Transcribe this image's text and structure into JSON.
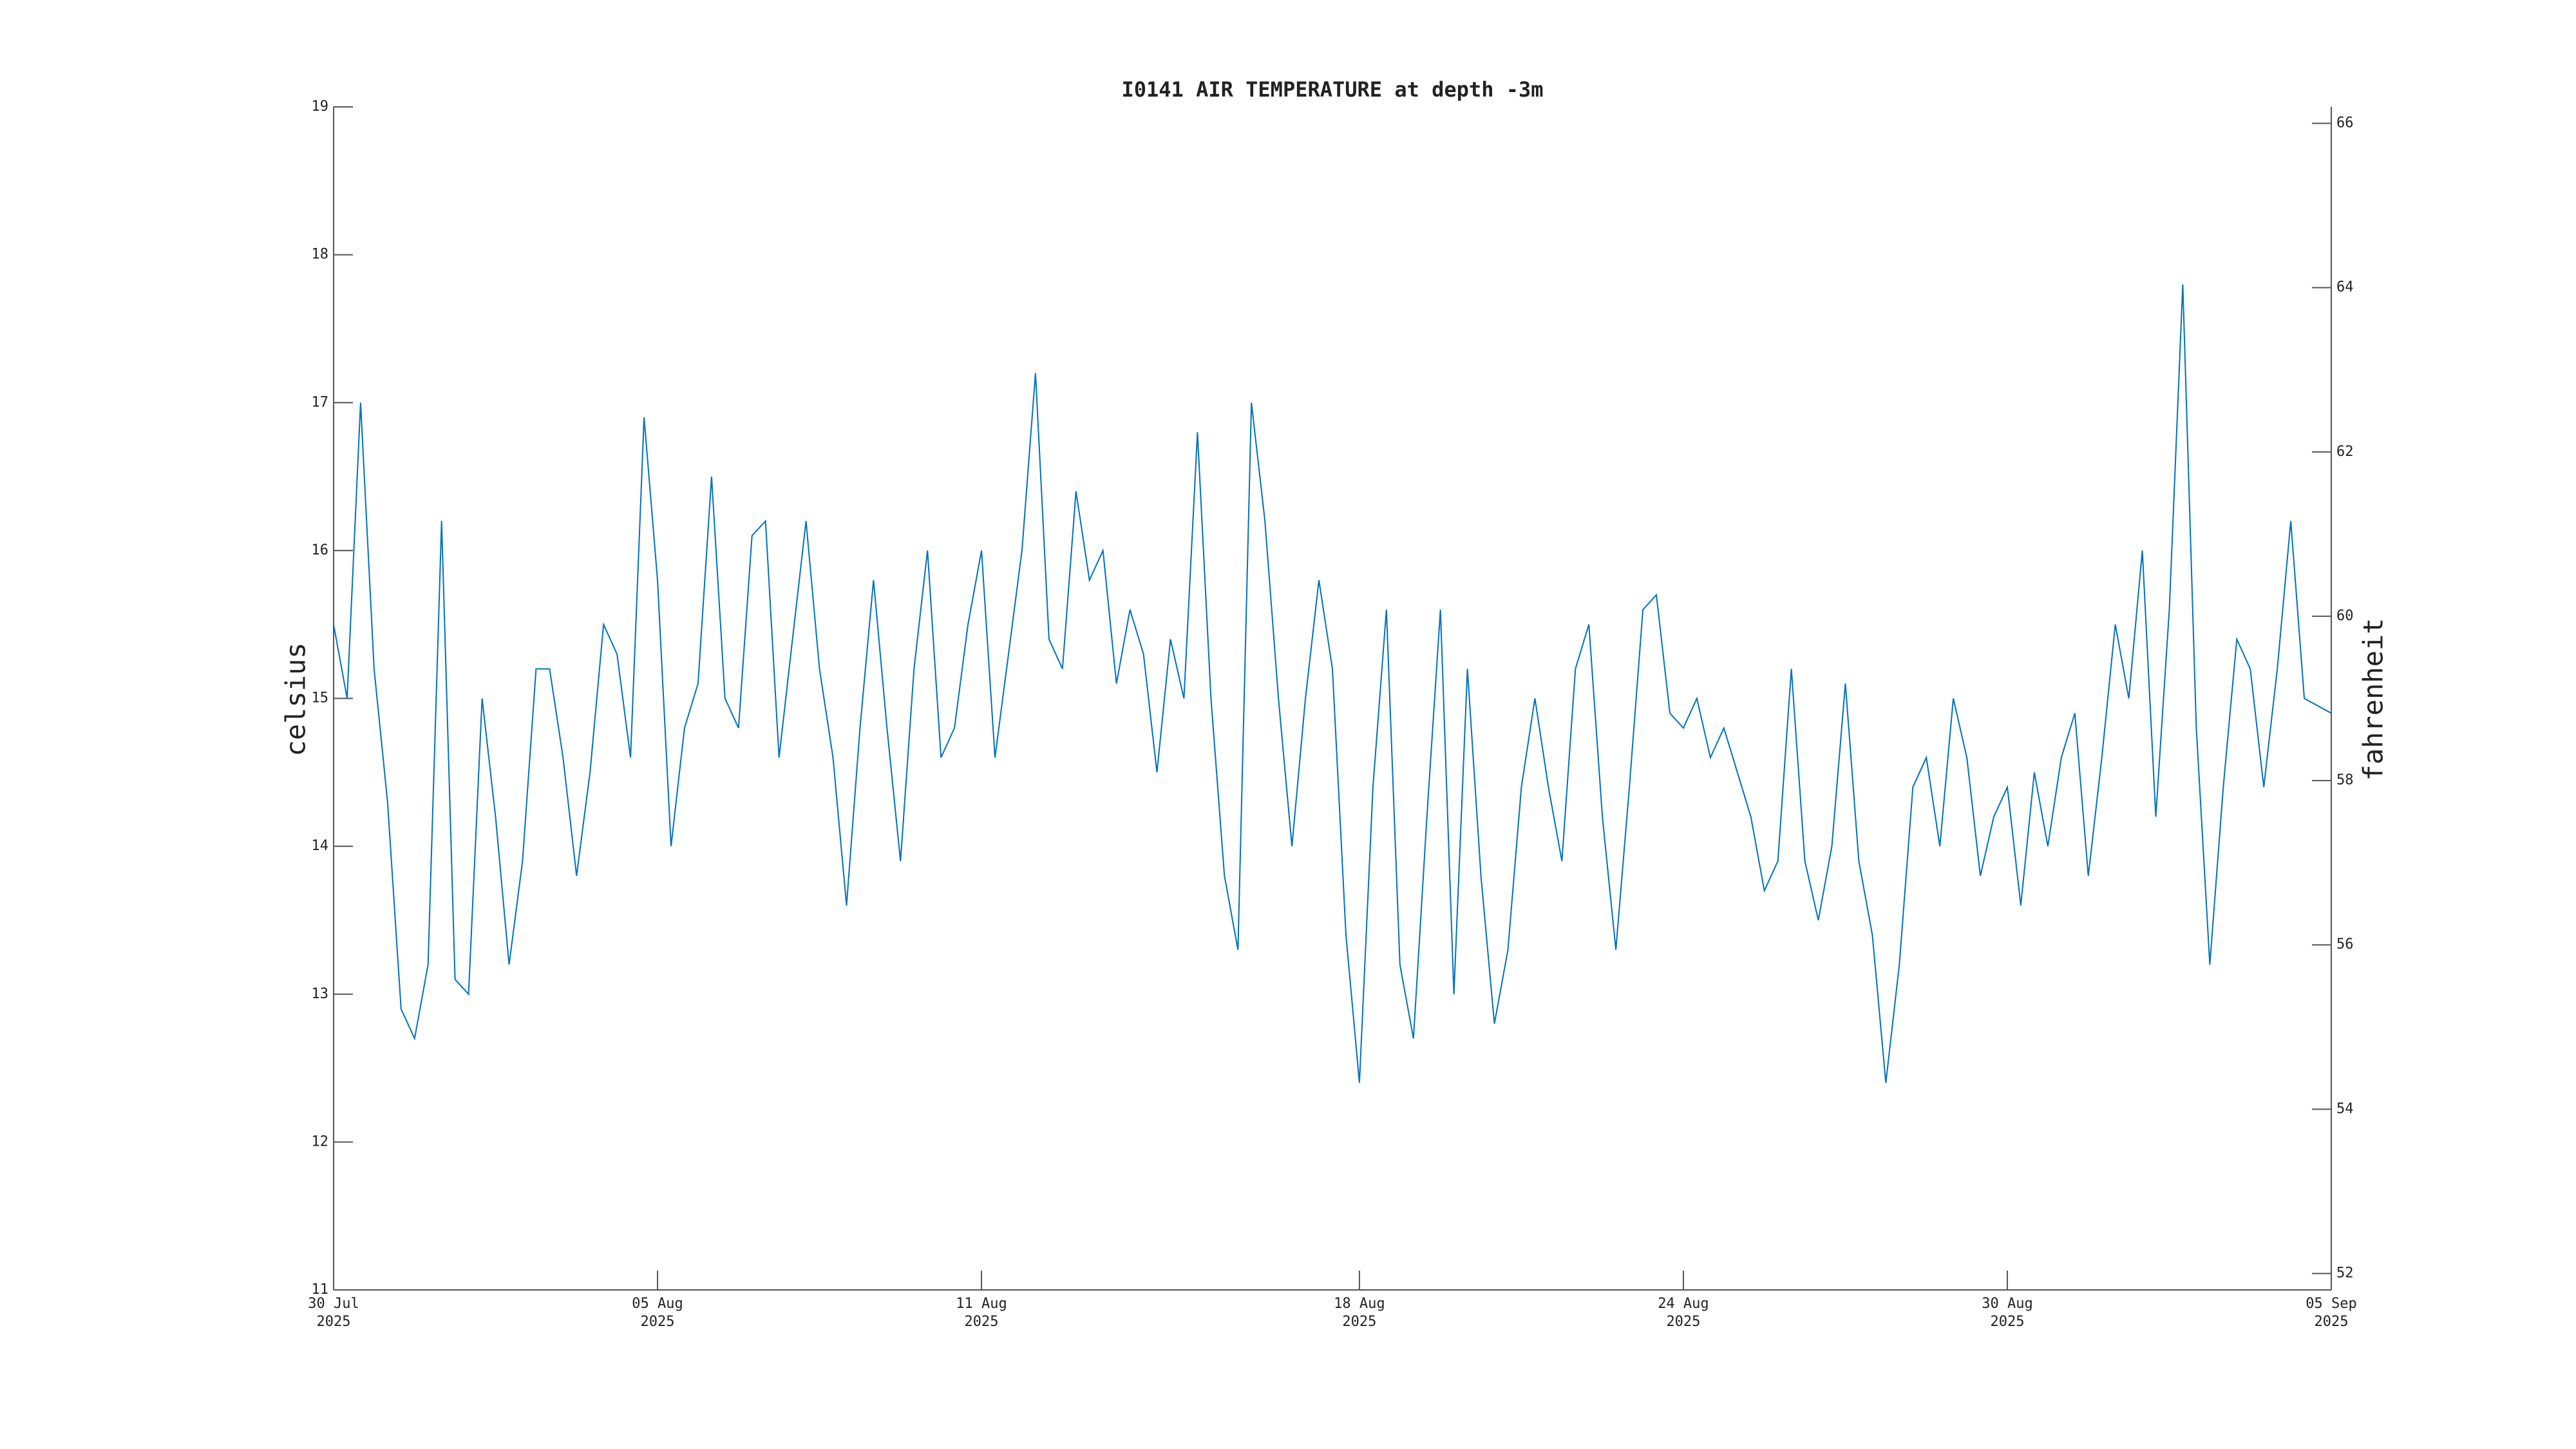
{
  "chart_data": {
    "type": "line",
    "title": "I0141 AIR TEMPERATURE at depth -3m",
    "ylabel": "celsius",
    "y2label": "fahrenheit",
    "x": [
      "2025-07-30T00:00",
      "2025-07-30T06:00",
      "2025-07-30T12:00",
      "2025-07-30T18:00",
      "2025-07-31T00:00",
      "2025-07-31T06:00",
      "2025-07-31T12:00",
      "2025-07-31T18:00",
      "2025-08-01T00:00",
      "2025-08-01T06:00",
      "2025-08-01T12:00",
      "2025-08-01T18:00",
      "2025-08-02T00:00",
      "2025-08-02T06:00",
      "2025-08-02T12:00",
      "2025-08-02T18:00",
      "2025-08-03T00:00",
      "2025-08-03T06:00",
      "2025-08-03T12:00",
      "2025-08-03T18:00",
      "2025-08-04T00:00",
      "2025-08-04T06:00",
      "2025-08-04T12:00",
      "2025-08-04T18:00",
      "2025-08-05T00:00",
      "2025-08-05T06:00",
      "2025-08-05T12:00",
      "2025-08-05T18:00",
      "2025-08-06T00:00",
      "2025-08-06T06:00",
      "2025-08-06T12:00",
      "2025-08-06T18:00",
      "2025-08-07T00:00",
      "2025-08-07T06:00",
      "2025-08-07T12:00",
      "2025-08-07T18:00",
      "2025-08-08T00:00",
      "2025-08-08T06:00",
      "2025-08-08T12:00",
      "2025-08-08T18:00",
      "2025-08-09T00:00",
      "2025-08-09T06:00",
      "2025-08-09T12:00",
      "2025-08-09T18:00",
      "2025-08-10T00:00",
      "2025-08-10T06:00",
      "2025-08-10T12:00",
      "2025-08-10T18:00",
      "2025-08-11T00:00",
      "2025-08-11T06:00",
      "2025-08-11T12:00",
      "2025-08-11T18:00",
      "2025-08-12T00:00",
      "2025-08-12T06:00",
      "2025-08-12T12:00",
      "2025-08-12T18:00",
      "2025-08-13T00:00",
      "2025-08-13T06:00",
      "2025-08-13T12:00",
      "2025-08-13T18:00",
      "2025-08-14T00:00",
      "2025-08-14T06:00",
      "2025-08-14T12:00",
      "2025-08-14T18:00",
      "2025-08-15T00:00",
      "2025-08-15T06:00",
      "2025-08-15T12:00",
      "2025-08-15T18:00",
      "2025-08-16T00:00",
      "2025-08-16T06:00",
      "2025-08-16T12:00",
      "2025-08-16T18:00",
      "2025-08-17T00:00",
      "2025-08-17T06:00",
      "2025-08-17T12:00",
      "2025-08-17T18:00",
      "2025-08-18T00:00",
      "2025-08-18T06:00",
      "2025-08-18T12:00",
      "2025-08-18T18:00",
      "2025-08-19T00:00",
      "2025-08-19T06:00",
      "2025-08-19T12:00",
      "2025-08-19T18:00",
      "2025-08-20T00:00",
      "2025-08-20T06:00",
      "2025-08-20T12:00",
      "2025-08-20T18:00",
      "2025-08-21T00:00",
      "2025-08-21T06:00",
      "2025-08-21T12:00",
      "2025-08-21T18:00",
      "2025-08-22T00:00",
      "2025-08-22T06:00",
      "2025-08-22T12:00",
      "2025-08-22T18:00",
      "2025-08-23T00:00",
      "2025-08-23T06:00",
      "2025-08-23T12:00",
      "2025-08-23T18:00",
      "2025-08-24T00:00",
      "2025-08-24T06:00",
      "2025-08-24T12:00",
      "2025-08-24T18:00",
      "2025-08-25T00:00",
      "2025-08-25T06:00",
      "2025-08-25T12:00",
      "2025-08-25T18:00",
      "2025-08-26T00:00",
      "2025-08-26T06:00",
      "2025-08-26T12:00",
      "2025-08-26T18:00",
      "2025-08-27T00:00",
      "2025-08-27T06:00",
      "2025-08-27T12:00",
      "2025-08-27T18:00",
      "2025-08-28T00:00",
      "2025-08-28T06:00",
      "2025-08-28T12:00",
      "2025-08-28T18:00",
      "2025-08-29T00:00",
      "2025-08-29T06:00",
      "2025-08-29T12:00",
      "2025-08-29T18:00",
      "2025-08-30T00:00",
      "2025-08-30T06:00",
      "2025-08-30T12:00",
      "2025-08-30T18:00",
      "2025-08-31T00:00",
      "2025-08-31T06:00",
      "2025-08-31T12:00",
      "2025-08-31T18:00",
      "2025-09-01T00:00",
      "2025-09-01T06:00",
      "2025-09-01T12:00",
      "2025-09-01T18:00",
      "2025-09-02T00:00",
      "2025-09-02T06:00",
      "2025-09-02T12:00",
      "2025-09-02T18:00",
      "2025-09-03T00:00",
      "2025-09-03T06:00",
      "2025-09-03T12:00",
      "2025-09-03T18:00",
      "2025-09-04T00:00",
      "2025-09-04T06:00",
      "2025-09-04T12:00",
      "2025-09-05T00:00"
    ],
    "series": [
      {
        "color": "#0072bd",
        "values": [
          15.5,
          15.0,
          17.0,
          15.2,
          14.3,
          12.9,
          12.7,
          13.2,
          16.2,
          13.1,
          13.0,
          15.0,
          14.2,
          13.2,
          13.9,
          15.2,
          15.2,
          14.6,
          13.8,
          14.5,
          15.5,
          15.3,
          14.6,
          16.9,
          15.8,
          14.0,
          14.8,
          15.1,
          16.5,
          15.0,
          14.8,
          16.1,
          16.2,
          14.6,
          15.4,
          16.2,
          15.2,
          14.6,
          13.6,
          14.8,
          15.8,
          14.8,
          13.9,
          15.2,
          16.0,
          14.6,
          14.8,
          15.5,
          16.0,
          14.6,
          15.3,
          16.0,
          17.2,
          15.4,
          15.2,
          16.4,
          15.8,
          16.0,
          15.1,
          15.6,
          15.3,
          14.5,
          15.4,
          15.0,
          16.8,
          15.0,
          13.8,
          13.3,
          17.0,
          16.2,
          15.0,
          14.0,
          15.0,
          15.8,
          15.2,
          13.4,
          12.4,
          14.4,
          15.6,
          13.2,
          12.7,
          14.2,
          15.6,
          13.0,
          15.2,
          13.8,
          12.8,
          13.3,
          14.4,
          15.0,
          14.4,
          13.9,
          15.2,
          15.5,
          14.2,
          13.3,
          14.4,
          15.6,
          15.7,
          14.9,
          14.8,
          15.0,
          14.6,
          14.8,
          14.5,
          14.2,
          13.7,
          13.9,
          15.2,
          13.9,
          13.5,
          14.0,
          15.1,
          13.9,
          13.4,
          12.4,
          13.2,
          14.4,
          14.6,
          14.0,
          15.0,
          14.6,
          13.8,
          14.2,
          14.4,
          13.6,
          14.5,
          14.0,
          14.6,
          14.9,
          13.8,
          14.6,
          15.5,
          15.0,
          16.0,
          14.2,
          15.6,
          17.8,
          14.8,
          13.2,
          14.4,
          15.4,
          15.2,
          14.4,
          15.2,
          16.2,
          15.0,
          14.9
        ]
      }
    ],
    "xlim": [
      "2025-07-30",
      "2025-09-05"
    ],
    "xticks": [
      {
        "value": "2025-07-30",
        "label": "30 Jul\n2025"
      },
      {
        "value": "2025-08-05",
        "label": "05 Aug\n2025"
      },
      {
        "value": "2025-08-11",
        "label": "11 Aug\n2025"
      },
      {
        "value": "2025-08-18",
        "label": "18 Aug\n2025"
      },
      {
        "value": "2025-08-24",
        "label": "24 Aug\n2025"
      },
      {
        "value": "2025-08-30",
        "label": "30 Aug\n2025"
      },
      {
        "value": "2025-09-05",
        "label": "05 Sep\n2025"
      }
    ],
    "ylim": [
      11,
      19
    ],
    "yticks": [
      11,
      12,
      13,
      14,
      15,
      16,
      17,
      18,
      19
    ],
    "y2lim": [
      51.8,
      66.2
    ],
    "y2ticks": [
      52,
      54,
      56,
      58,
      60,
      62,
      64,
      66
    ]
  }
}
